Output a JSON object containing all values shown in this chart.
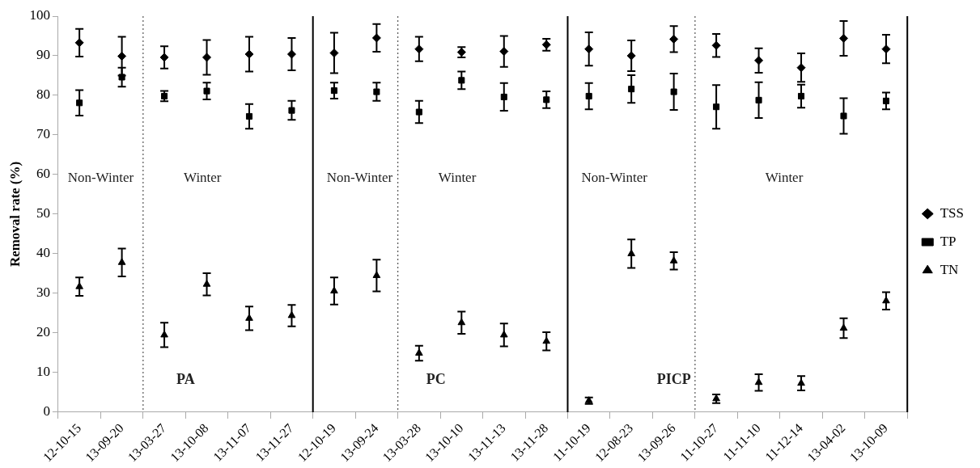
{
  "chart_data": {
    "type": "scatter",
    "ylabel": "Removal rate (%)",
    "categories": [
      "12-10-15",
      "13-09-20",
      "13-03-27",
      "13-10-08",
      "13-11-07",
      "13-11-27",
      "12-10-19",
      "13-09-24",
      "13-03-28",
      "13-10-10",
      "13-11-13",
      "13-11-28",
      "11-10-19",
      "12-08-23",
      "13-09-26",
      "11-10-27",
      "11-11-10",
      "11-12-14",
      "13-04-02",
      "13-10-09"
    ],
    "series": [
      {
        "name": "TSS",
        "color": "#000000",
        "marker": "diamond",
        "values": [
          93.3,
          89.9,
          89.6,
          89.6,
          90.4,
          90.4,
          90.7,
          94.5,
          91.7,
          90.9,
          91.1,
          92.8,
          91.7,
          90.0,
          94.2,
          92.6,
          88.8,
          87.0,
          94.4,
          91.7
        ],
        "errors": [
          3.5,
          4.9,
          2.8,
          4.4,
          4.4,
          4.1,
          5.1,
          3.5,
          3.1,
          1.3,
          3.9,
          1.5,
          4.2,
          3.9,
          3.3,
          2.9,
          3.1,
          3.6,
          4.4,
          3.6
        ]
      },
      {
        "name": "TP",
        "color": "#000000",
        "marker": "square",
        "values": [
          78.1,
          84.6,
          79.8,
          81.1,
          74.7,
          76.2,
          81.2,
          80.9,
          75.8,
          83.8,
          79.6,
          78.9,
          79.8,
          81.6,
          80.9,
          77.1,
          78.8,
          79.8,
          74.8,
          78.6
        ],
        "errors": [
          3.2,
          2.4,
          1.3,
          2.1,
          3.1,
          2.4,
          2.0,
          2.3,
          2.8,
          2.2,
          3.5,
          2.1,
          3.3,
          3.5,
          4.6,
          5.5,
          4.5,
          2.9,
          4.5,
          2.1
        ]
      },
      {
        "name": "TN",
        "color": "#000000",
        "marker": "triangle",
        "values": [
          31.7,
          37.8,
          19.5,
          32.3,
          23.7,
          24.4,
          30.6,
          34.5,
          14.9,
          22.6,
          19.5,
          17.9,
          2.9,
          40.0,
          38.2,
          3.4,
          7.5,
          7.3,
          21.2,
          28.1
        ],
        "errors": [
          2.3,
          3.5,
          3.1,
          2.8,
          3.0,
          2.7,
          3.4,
          4.0,
          1.9,
          2.8,
          2.9,
          2.3,
          0.8,
          3.6,
          2.2,
          1.1,
          2.1,
          1.8,
          2.5,
          2.2
        ]
      }
    ],
    "ylim": [
      0,
      100
    ],
    "yticks": [
      0,
      10,
      20,
      30,
      40,
      50,
      60,
      70,
      80,
      90,
      100
    ],
    "grid": false,
    "legend": "right",
    "annotations": [
      "Non-Winter",
      "Winter",
      "PA",
      "Non-Winter",
      "Winter",
      "PC",
      "Non-Winter",
      "Winter",
      "PICP"
    ]
  }
}
